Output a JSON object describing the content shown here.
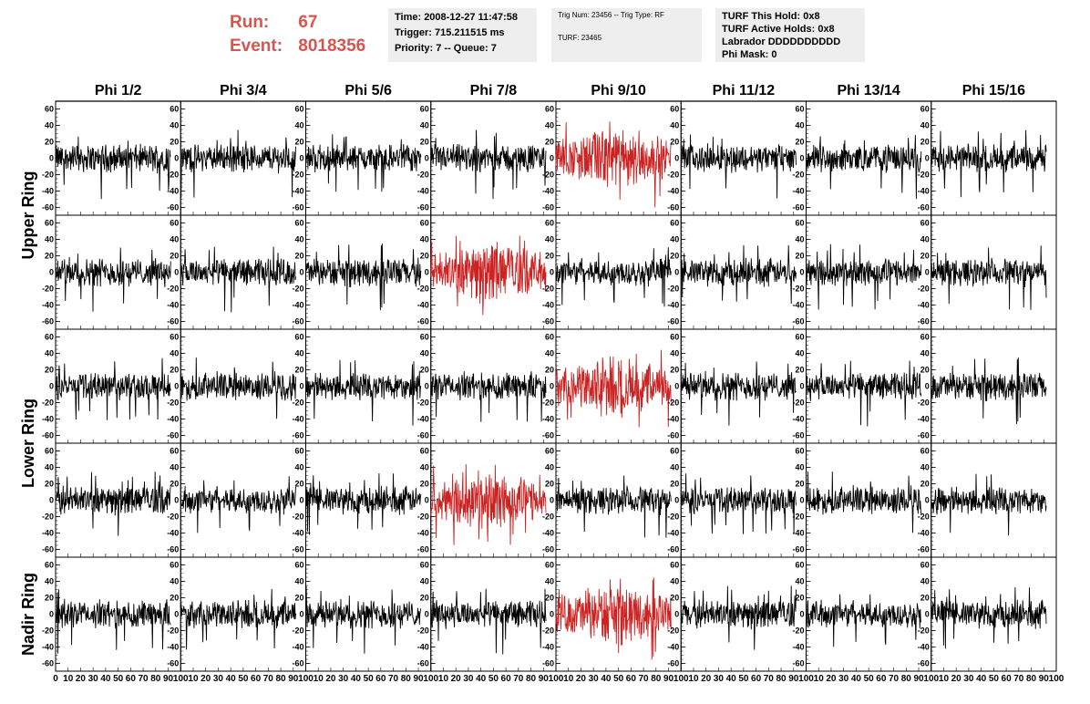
{
  "header": {
    "run_label": "Run:",
    "run_value": "67",
    "event_label": "Event:",
    "event_value": "8018356",
    "box1": [
      "Time: 2008-12-27 11:47:58",
      "Trigger: 715.211515 ms",
      "Priority: 7 -- Queue: 7"
    ],
    "box2": [
      "Trig Num: 23456 -- Trig Type: RF",
      "TURF: 23465"
    ],
    "box3": [
      "TURF This Hold: 0x8",
      "TURF Active Holds: 0x8",
      "Labrador DDDDDDDDDD",
      "Phi Mask: 0"
    ]
  },
  "chart_data": {
    "type": "line",
    "columns": [
      "Phi 1/2",
      "Phi 3/4",
      "Phi 5/6",
      "Phi 7/8",
      "Phi 9/10",
      "Phi 11/12",
      "Phi 13/14",
      "Phi 15/16"
    ],
    "row_labels": [
      {
        "label": "Upper Ring",
        "rows": [
          0,
          1
        ]
      },
      {
        "label": "Lower Ring",
        "rows": [
          2,
          3
        ]
      },
      {
        "label": "Nadir Ring",
        "rows": [
          4
        ]
      }
    ],
    "xlim": [
      0,
      100
    ],
    "ylim": [
      -65,
      65
    ],
    "x_ticks": [
      0,
      10,
      20,
      30,
      40,
      50,
      60,
      70,
      80,
      90,
      100
    ],
    "y_ticks": [
      -60,
      -40,
      -20,
      0,
      20,
      40,
      60
    ],
    "samples_per_trace": 260,
    "trace_x_range": [
      0,
      92
    ],
    "colors": {
      "normal": "#000000",
      "triggered": "#cc2222",
      "frame": "#000000",
      "title_run": "#d9534f"
    },
    "highlighted_panels": [
      {
        "row": 0,
        "col": 4
      },
      {
        "row": 1,
        "col": 3
      },
      {
        "row": 2,
        "col": 4
      },
      {
        "row": 3,
        "col": 3
      },
      {
        "row": 4,
        "col": 4
      }
    ],
    "noise_amplitude_normal": 14,
    "noise_amplitude_triggered": 24,
    "triggered_peak_range": [
      -60,
      45
    ],
    "normal_peak_range": [
      -50,
      35
    ]
  }
}
